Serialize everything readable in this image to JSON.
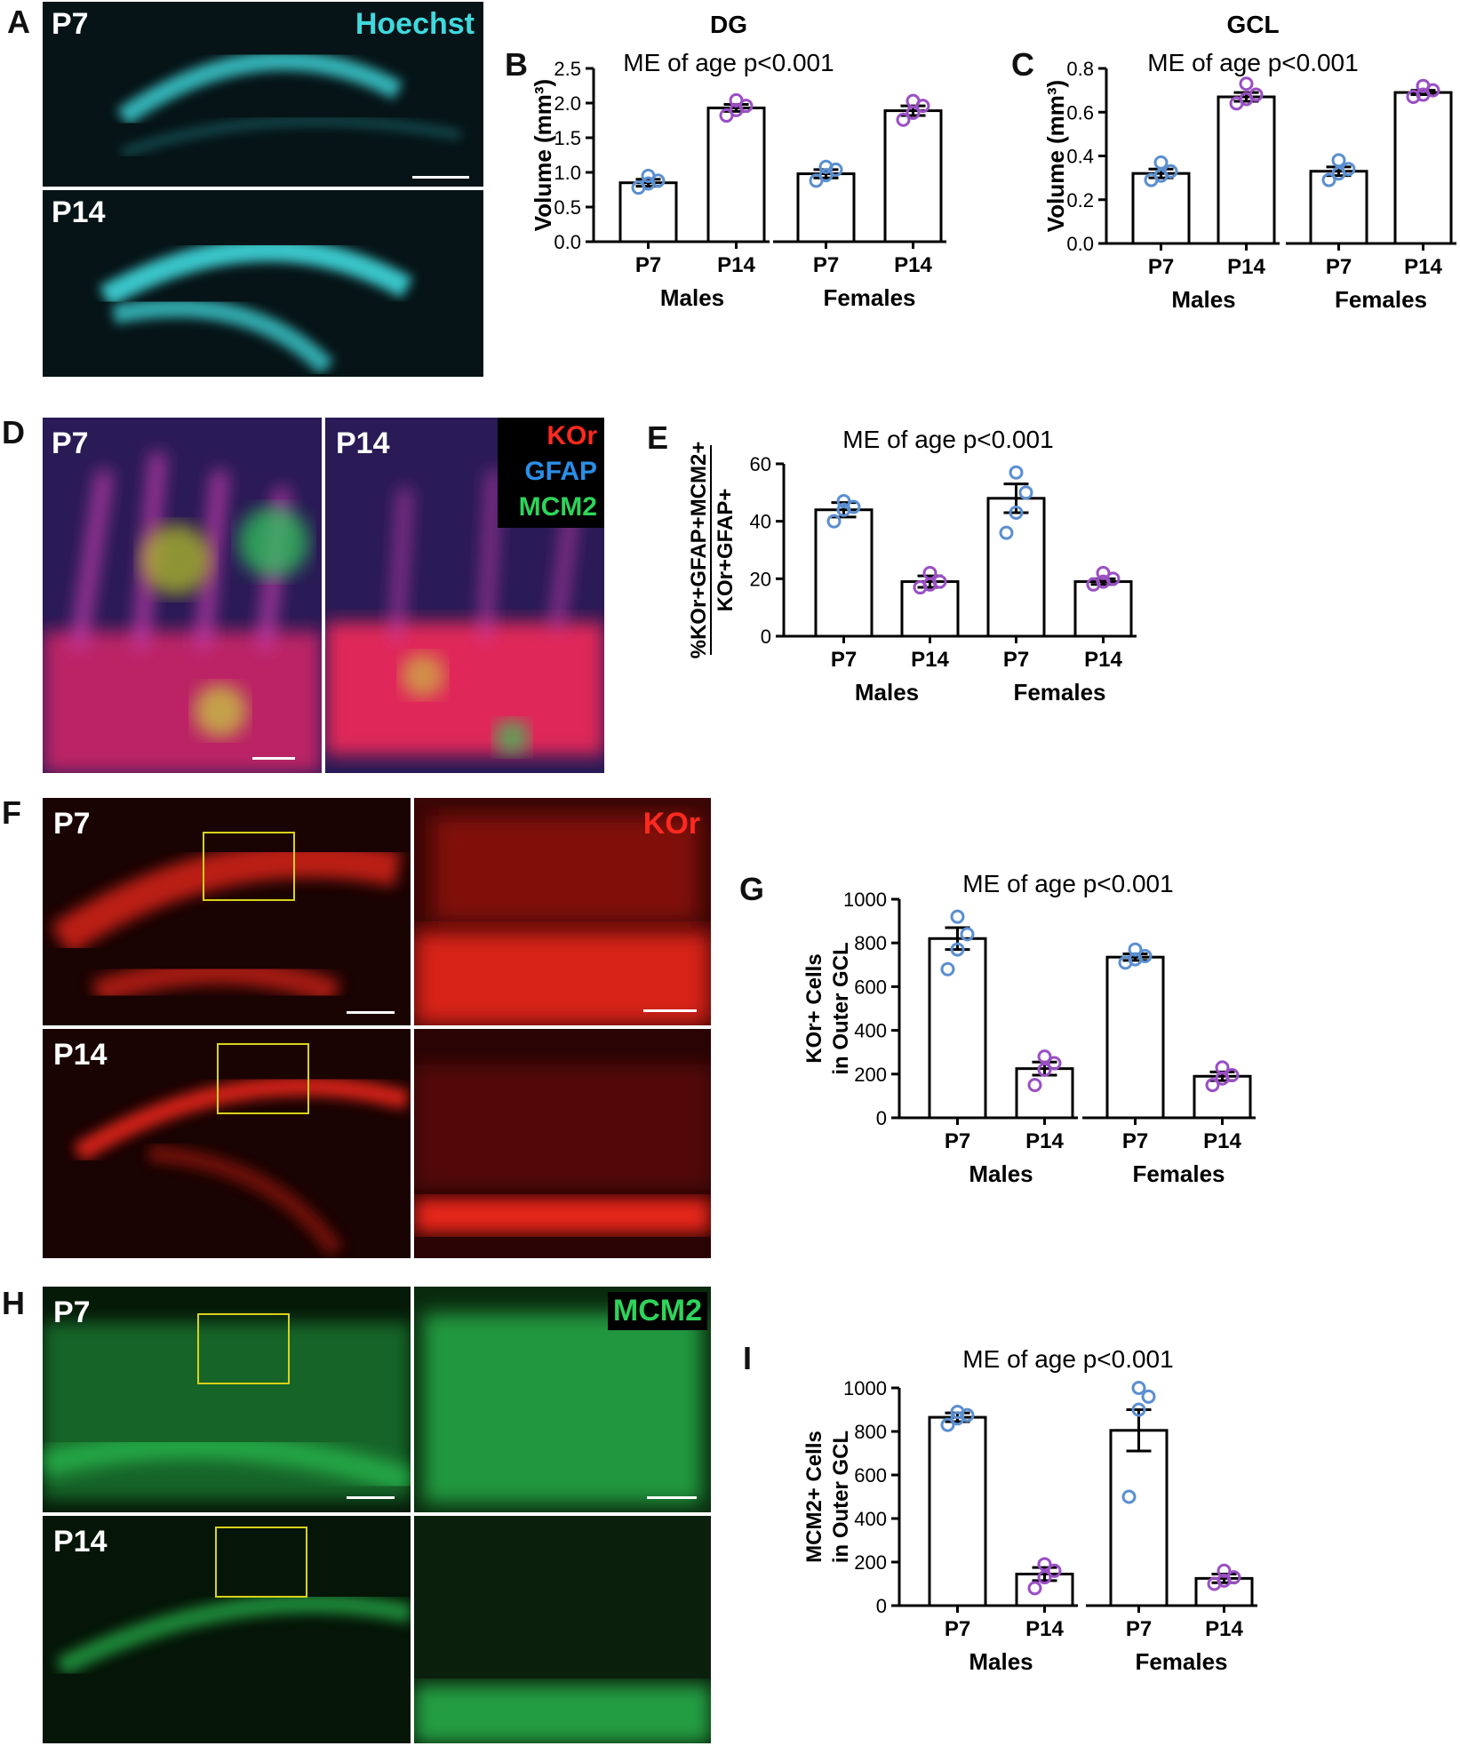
{
  "colors": {
    "hoechst": "#3fd9dd",
    "kor": "#ff2a1f",
    "gfap": "#2a8fe6",
    "mcm2": "#2fd35a",
    "p7_dots": "#5b8fd0",
    "p14_dots": "#9a4fc4",
    "roi": "#d8d21a"
  },
  "panels": {
    "A": {
      "letter": "A",
      "stain": "Hoechst",
      "top_label": "P7",
      "bottom_label": "P14"
    },
    "B": {
      "letter": "B",
      "title": "DG"
    },
    "C": {
      "letter": "C",
      "title": "GCL"
    },
    "D": {
      "letter": "D",
      "left_label": "P7",
      "right_label": "P14",
      "stains": [
        "KOr",
        "GFAP",
        "MCM2"
      ]
    },
    "E": {
      "letter": "E"
    },
    "F": {
      "letter": "F",
      "stain": "KOr",
      "top_label": "P7",
      "bottom_label": "P14"
    },
    "G": {
      "letter": "G"
    },
    "H": {
      "letter": "H",
      "stain": "MCM2",
      "top_label": "P7",
      "bottom_label": "P14"
    },
    "I": {
      "letter": "I"
    }
  },
  "chart_data": [
    {
      "id": "B",
      "type": "bar",
      "title": "DG",
      "annotation": "ME of age p<0.001",
      "ylabel": "Volume (mm³)",
      "ylim": [
        0,
        2.5
      ],
      "yticks": [
        "0.0",
        "0.5",
        "1.0",
        "1.5",
        "2.0",
        "2.5"
      ],
      "groups": [
        "Males",
        "Females"
      ],
      "categories": [
        "P7",
        "P14",
        "P7",
        "P14"
      ],
      "values": [
        0.85,
        1.93,
        0.98,
        1.89
      ],
      "errors": [
        0.05,
        0.05,
        0.06,
        0.07
      ],
      "points": [
        [
          0.78,
          0.84,
          0.88,
          0.95
        ],
        [
          1.82,
          1.9,
          1.96,
          2.04
        ],
        [
          0.88,
          0.96,
          1.04,
          1.08
        ],
        [
          1.76,
          1.86,
          1.96,
          2.03
        ]
      ]
    },
    {
      "id": "C",
      "type": "bar",
      "title": "GCL",
      "annotation": "ME of age p<0.001",
      "ylabel": "Volume (mm³)",
      "ylim": [
        0,
        0.8
      ],
      "yticks": [
        "0.0",
        "0.2",
        "0.4",
        "0.6",
        "0.8"
      ],
      "groups": [
        "Males",
        "Females"
      ],
      "categories": [
        "P7",
        "P14",
        "P7",
        "P14"
      ],
      "values": [
        0.32,
        0.67,
        0.33,
        0.69
      ],
      "errors": [
        0.02,
        0.02,
        0.02,
        0.01
      ],
      "points": [
        [
          0.29,
          0.31,
          0.33,
          0.37
        ],
        [
          0.64,
          0.66,
          0.68,
          0.73
        ],
        [
          0.29,
          0.32,
          0.34,
          0.38
        ],
        [
          0.67,
          0.68,
          0.7,
          0.72
        ]
      ]
    },
    {
      "id": "E",
      "type": "bar",
      "annotation": "ME of age p<0.001",
      "ylabel_top": "%KOr+GFAP+MCM2+",
      "ylabel_bottom": "KOr+GFAP+",
      "ylim": [
        0,
        60
      ],
      "yticks": [
        "0",
        "20",
        "40",
        "60"
      ],
      "groups": [
        "Males",
        "Females"
      ],
      "categories": [
        "P7",
        "P14",
        "P7",
        "P14"
      ],
      "values": [
        44,
        19,
        48,
        19
      ],
      "errors": [
        2.5,
        2,
        5,
        1
      ],
      "points": [
        [
          40,
          44,
          45,
          47
        ],
        [
          17,
          18,
          19,
          22
        ],
        [
          36,
          43,
          50,
          57
        ],
        [
          18,
          19,
          20,
          22
        ]
      ]
    },
    {
      "id": "G",
      "type": "bar",
      "annotation": "ME of age p<0.001",
      "ylabel_top": "KOr+ Cells",
      "ylabel_bottom": "in Outer GCL",
      "ylim": [
        0,
        1000
      ],
      "yticks": [
        "0",
        "200",
        "400",
        "600",
        "800",
        "1000"
      ],
      "groups": [
        "Males",
        "Females"
      ],
      "categories": [
        "P7",
        "P14",
        "P7",
        "P14"
      ],
      "values": [
        820,
        225,
        735,
        190
      ],
      "errors": [
        50,
        30,
        15,
        20
      ],
      "points": [
        [
          680,
          770,
          840,
          920
        ],
        [
          150,
          220,
          250,
          280
        ],
        [
          710,
          725,
          740,
          770
        ],
        [
          150,
          180,
          195,
          230
        ]
      ]
    },
    {
      "id": "I",
      "type": "bar",
      "annotation": "ME of age p<0.001",
      "ylabel_top": "MCM2+ Cells",
      "ylabel_bottom": "in Outer GCL",
      "ylim": [
        0,
        1000
      ],
      "yticks": [
        "0",
        "200",
        "400",
        "600",
        "800",
        "1000"
      ],
      "groups": [
        "Males",
        "Females"
      ],
      "categories": [
        "P7",
        "P14",
        "P7",
        "P14"
      ],
      "values": [
        865,
        145,
        805,
        125
      ],
      "errors": [
        20,
        30,
        95,
        20
      ],
      "points": [
        [
          830,
          860,
          875,
          890
        ],
        [
          80,
          130,
          160,
          190
        ],
        [
          500,
          900,
          960,
          1000
        ],
        [
          100,
          115,
          130,
          160
        ]
      ]
    }
  ]
}
